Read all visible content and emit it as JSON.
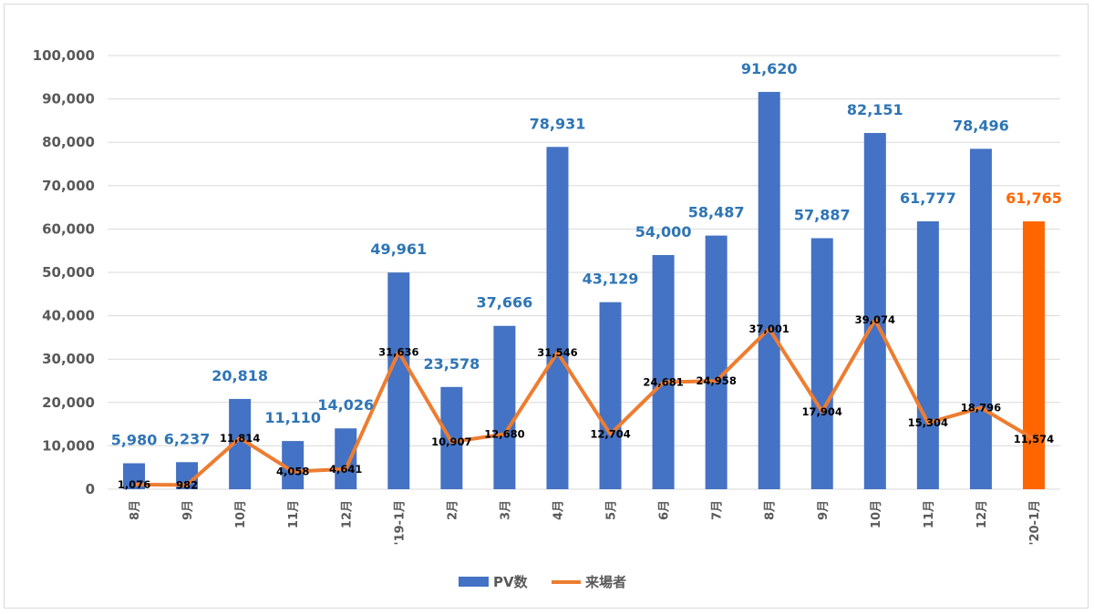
{
  "colors": {
    "bar": "#4472C4",
    "bar_highlight": "#FF6600",
    "line": "#ED7D31",
    "bar_label": "#2E75B6",
    "bar_label_highlight": "#FF6600",
    "grid": "#d9d9d9",
    "tick": "#595959"
  },
  "chart_data": {
    "type": "bar",
    "categories": [
      "8月",
      "9月",
      "10月",
      "11月",
      "12月",
      "'19-1月",
      "2月",
      "3月",
      "4月",
      "5月",
      "6月",
      "7月",
      "8月",
      "9月",
      "10月",
      "11月",
      "12月",
      "'20-1月"
    ],
    "series": [
      {
        "name": "PV数",
        "kind": "bar",
        "values": [
          5980,
          6237,
          20818,
          11110,
          14026,
          49961,
          23578,
          37666,
          78931,
          43129,
          54000,
          58487,
          91620,
          57887,
          82151,
          61777,
          78496,
          61765
        ],
        "labels": [
          "5,980",
          "6,237",
          "20,818",
          "11,110",
          "14,026",
          "49,961",
          "23,578",
          "37,666",
          "78,931",
          "43,129",
          "54,000",
          "58,487",
          "91,620",
          "57,887",
          "82,151",
          "61,777",
          "78,496",
          "61,765"
        ],
        "highlight_index": 17
      },
      {
        "name": "来場者",
        "kind": "line",
        "values": [
          1076,
          982,
          11814,
          4058,
          4641,
          31636,
          10907,
          12680,
          31546,
          12704,
          24681,
          24958,
          37001,
          17904,
          39074,
          15304,
          18796,
          11574
        ],
        "labels": [
          "1,076",
          "982",
          "11,814",
          "4,058",
          "4,641",
          "31,636",
          "10,907",
          "12,680",
          "31,546",
          "12,704",
          "24,681",
          "24,958",
          "37,001",
          "17,904",
          "39,074",
          "15,304",
          "18,796",
          "11,574"
        ]
      }
    ],
    "y_ticks": [
      "0",
      "10,000",
      "20,000",
      "30,000",
      "40,000",
      "50,000",
      "60,000",
      "70,000",
      "80,000",
      "90,000",
      "100,000"
    ],
    "ylim": [
      0,
      100000
    ],
    "grid": true,
    "legend": "bottom-center",
    "title": "",
    "xlabel": "",
    "ylabel": ""
  }
}
